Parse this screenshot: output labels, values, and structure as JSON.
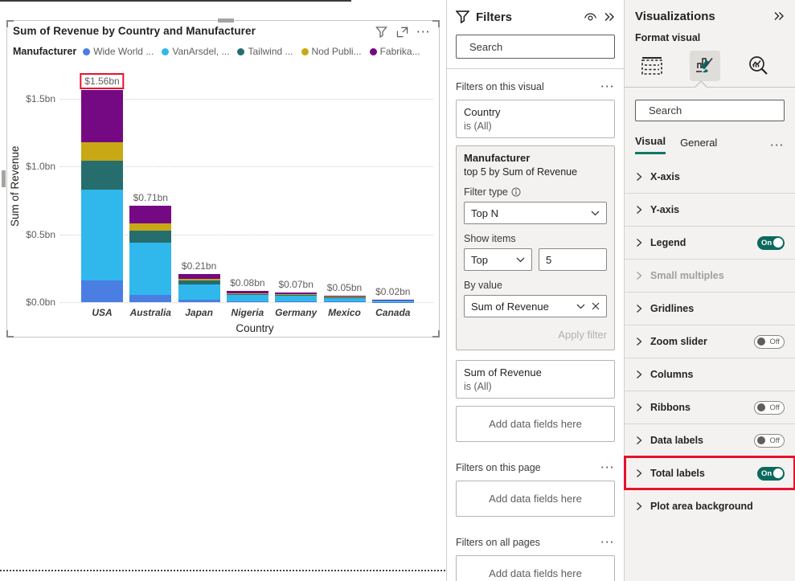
{
  "visual": {
    "title": "Sum of Revenue by Country and Manufacturer",
    "legend_title": "Manufacturer"
  },
  "chart_data": {
    "type": "bar",
    "stacked": true,
    "title": "Sum of Revenue by Country and Manufacturer",
    "xlabel": "Country",
    "ylabel": "Sum of Revenue",
    "ylim": [
      0,
      1.68
    ],
    "ytick_values": [
      0,
      0.5,
      1.0,
      1.5
    ],
    "ytick_labels": [
      "$0.0bn",
      "$0.5bn",
      "$1.0bn",
      "$1.5bn"
    ],
    "gridlines": true,
    "legend_position": "top",
    "categories": [
      "USA",
      "Australia",
      "Japan",
      "Nigeria",
      "Germany",
      "Mexico",
      "Canada"
    ],
    "totals": [
      1.56,
      0.71,
      0.21,
      0.08,
      0.07,
      0.05,
      0.02
    ],
    "total_labels": [
      "$1.56bn",
      "$0.71bn",
      "$0.21bn",
      "$0.08bn",
      "$0.07bn",
      "$0.05bn",
      "$0.02bn"
    ],
    "highlighted_total_label_index": 0,
    "series": [
      {
        "name": "Wide World ...",
        "color": "#4A7EE2",
        "values": [
          0.16,
          0.055,
          0.018,
          0.004,
          0.003,
          0.003,
          0.001
        ]
      },
      {
        "name": "VanArsdel, ...",
        "color": "#30B8EC",
        "values": [
          0.67,
          0.385,
          0.115,
          0.051,
          0.047,
          0.031,
          0.013
        ]
      },
      {
        "name": "Tailwind ...",
        "color": "#266E6E",
        "values": [
          0.21,
          0.085,
          0.025,
          0.007,
          0.005,
          0.004,
          0.002
        ]
      },
      {
        "name": "Nod Publi...",
        "color": "#C8A815",
        "values": [
          0.14,
          0.055,
          0.012,
          0.004,
          0.003,
          0.003,
          0.001
        ]
      },
      {
        "name": "Fabrika...",
        "color": "#750984",
        "values": [
          0.38,
          0.13,
          0.04,
          0.014,
          0.012,
          0.009,
          0.003
        ]
      }
    ]
  },
  "filters": {
    "title": "Filters",
    "search_placeholder": "Search",
    "section_visual": "Filters on this visual",
    "section_page": "Filters on this page",
    "section_all": "Filters on all pages",
    "add_fields": "Add data fields here",
    "country_card": {
      "field": "Country",
      "condition": "is (All)"
    },
    "manufacturer_card": {
      "field": "Manufacturer",
      "condition": "top 5 by Sum of Revenue",
      "filter_type_label": "Filter type",
      "filter_type_value": "Top N",
      "show_items_label": "Show items",
      "show_mode": "Top",
      "show_count": "5",
      "by_value_label": "By value",
      "by_value_field": "Sum of Revenue",
      "apply_label": "Apply filter"
    },
    "revenue_card": {
      "field": "Sum of Revenue",
      "condition": "is (All)"
    }
  },
  "visualizations": {
    "title": "Visualizations",
    "subtitle": "Format visual",
    "search_placeholder": "Search",
    "tab_visual": "Visual",
    "tab_general": "General",
    "sections": [
      {
        "label": "X-axis"
      },
      {
        "label": "Y-axis"
      },
      {
        "label": "Legend",
        "toggle": "On"
      },
      {
        "label": "Small multiples",
        "disabled": true
      },
      {
        "label": "Gridlines"
      },
      {
        "label": "Zoom slider",
        "toggle": "Off"
      },
      {
        "label": "Columns"
      },
      {
        "label": "Ribbons",
        "toggle": "Off"
      },
      {
        "label": "Data labels",
        "toggle": "Off"
      },
      {
        "label": "Total labels",
        "toggle": "On",
        "highlighted": true
      },
      {
        "label": "Plot area background"
      }
    ]
  },
  "colors": {
    "accent_teal": "#117865",
    "toggle_on": "#0C695E",
    "highlight_red": "#E8112D"
  }
}
